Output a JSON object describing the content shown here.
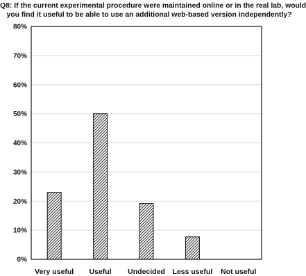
{
  "chart_data": {
    "type": "bar",
    "title_lines": [
      "Q8: If the current experimental procedure were maintained online or in the real lab, would",
      "you find it useful to be able to use an additional web-based version independently?"
    ],
    "categories": [
      "Very useful",
      "Useful",
      "Undecided",
      "Less useful",
      "Not useful"
    ],
    "values": [
      23,
      50,
      19.2,
      7.7,
      0
    ],
    "value_unit": "%",
    "ylim": [
      0,
      80
    ],
    "yticks": [
      0,
      10,
      20,
      30,
      40,
      50,
      60,
      70,
      80
    ],
    "ytick_labels": [
      "0%",
      "10%",
      "20%",
      "30%",
      "40%",
      "50%",
      "60%",
      "70%",
      "80%"
    ],
    "xlabel": "",
    "ylabel": "",
    "grid": true,
    "legend": false,
    "bar_pattern": "diagonal-hatch",
    "colors": {
      "bar_fill": "#ffffff",
      "bar_stroke": "#111111",
      "grid": "#d9d9d9",
      "axis": "#111111"
    }
  }
}
